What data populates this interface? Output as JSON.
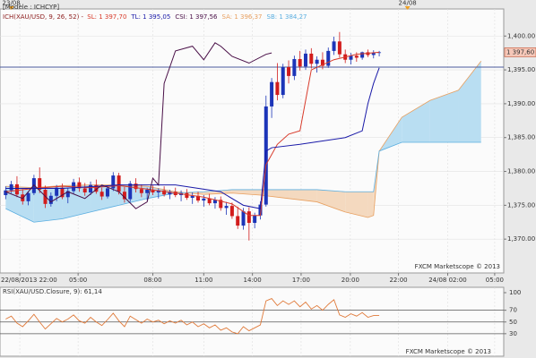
{
  "chart_data": {
    "type": "candlestick",
    "model_label": "[Modèle : ICHCYP]",
    "legend": {
      "indicator": "ICH(XAU/USD, 9, 26, 52) - ",
      "sl": "SL: 1 397,70",
      "tl": "TL: 1 395,05",
      "csi": "CSI: 1 397,56",
      "sa": "SA: 1 396,37",
      "sb": "SB: 1 384,27"
    },
    "watermark": "FXCM Marketscope © 2013",
    "up_color": "#1c35b8",
    "down_color": "#d21c1c",
    "xlim": [
      -1,
      88
    ],
    "xticks": [
      {
        "value": 2.5,
        "label": "22/08/2013 22:00"
      },
      {
        "value": 12.8,
        "label": "05:00"
      },
      {
        "value": 26,
        "label": "08:00"
      },
      {
        "value": 35,
        "label": "11:00"
      },
      {
        "value": 43.6,
        "label": "14:00"
      },
      {
        "value": 52.2,
        "label": "17:00"
      },
      {
        "value": 60.9,
        "label": "20:00"
      },
      {
        "value": 69.4,
        "label": "22:00"
      },
      {
        "value": 78.1,
        "label": "24/08 02:00"
      },
      {
        "value": 86.4,
        "label": "05:00"
      }
    ],
    "day_ticks": [
      {
        "value": 1,
        "label": "23/08"
      },
      {
        "value": 71,
        "label": "24/08"
      }
    ],
    "ylim": [
      1365,
      1404
    ],
    "yticks": [
      {
        "value": 1370,
        "label": "1,370.00"
      },
      {
        "value": 1375,
        "label": "1,375.00"
      },
      {
        "value": 1380,
        "label": "1,380.00"
      },
      {
        "value": 1385,
        "label": "1,385.00"
      },
      {
        "value": 1390,
        "label": "1,390.00"
      },
      {
        "value": 1395,
        "label": "1,395.00"
      },
      {
        "value": 1400,
        "label": "1,400.00"
      }
    ],
    "grid": true,
    "hline": {
      "value": 1395.4,
      "color": "#4a5a9c"
    },
    "last_price": {
      "value": 1397.6,
      "label": "1 397,60"
    },
    "candles": [
      [
        1376.5,
        1377.8,
        1375.9,
        1377.2
      ],
      [
        1377.2,
        1378.6,
        1376.8,
        1378.1
      ],
      [
        1378.1,
        1379.3,
        1376.2,
        1376.6
      ],
      [
        1376.6,
        1377.4,
        1375.1,
        1375.6
      ],
      [
        1375.6,
        1377.0,
        1375.0,
        1376.8
      ],
      [
        1376.8,
        1379.5,
        1376.5,
        1379.0
      ],
      [
        1379.0,
        1380.6,
        1376.8,
        1377.3
      ],
      [
        1377.3,
        1377.9,
        1374.6,
        1375.2
      ],
      [
        1375.2,
        1376.9,
        1374.8,
        1376.4
      ],
      [
        1376.4,
        1378.0,
        1375.6,
        1377.6
      ],
      [
        1377.6,
        1378.2,
        1375.9,
        1376.2
      ],
      [
        1376.2,
        1377.5,
        1375.3,
        1377.1
      ],
      [
        1377.1,
        1378.9,
        1376.7,
        1378.4
      ],
      [
        1378.4,
        1379.1,
        1377.0,
        1377.5
      ],
      [
        1377.5,
        1378.3,
        1376.4,
        1376.9
      ],
      [
        1376.9,
        1378.5,
        1376.5,
        1378.0
      ],
      [
        1378.0,
        1378.8,
        1376.7,
        1377.0
      ],
      [
        1377.0,
        1377.6,
        1375.8,
        1376.3
      ],
      [
        1376.3,
        1377.9,
        1376.0,
        1377.5
      ],
      [
        1377.5,
        1379.9,
        1377.1,
        1379.4
      ],
      [
        1379.4,
        1379.8,
        1376.6,
        1377.0
      ],
      [
        1377.0,
        1377.7,
        1375.4,
        1375.9
      ],
      [
        1375.9,
        1378.6,
        1375.5,
        1378.2
      ],
      [
        1378.2,
        1379.0,
        1376.9,
        1377.4
      ],
      [
        1377.4,
        1378.1,
        1376.2,
        1376.8
      ],
      [
        1376.8,
        1377.6,
        1375.7,
        1377.3
      ],
      [
        1377.3,
        1378.0,
        1376.5,
        1376.9
      ],
      [
        1376.9,
        1377.5,
        1376.0,
        1377.2
      ],
      [
        1377.2,
        1377.8,
        1376.3,
        1376.6
      ],
      [
        1376.6,
        1377.3,
        1375.9,
        1377.0
      ],
      [
        1377.0,
        1377.6,
        1376.2,
        1376.5
      ],
      [
        1376.5,
        1377.2,
        1375.6,
        1376.8
      ],
      [
        1376.8,
        1377.4,
        1375.8,
        1376.1
      ],
      [
        1376.1,
        1376.9,
        1375.2,
        1376.4
      ],
      [
        1376.4,
        1377.0,
        1375.4,
        1375.7
      ],
      [
        1375.7,
        1376.5,
        1374.8,
        1376.0
      ],
      [
        1376.0,
        1376.7,
        1375.0,
        1375.3
      ],
      [
        1375.3,
        1376.2,
        1374.5,
        1375.8
      ],
      [
        1375.8,
        1376.3,
        1374.2,
        1374.6
      ],
      [
        1374.6,
        1375.5,
        1373.6,
        1374.9
      ],
      [
        1374.9,
        1375.4,
        1373.0,
        1373.4
      ],
      [
        1373.4,
        1374.8,
        1371.5,
        1372.0
      ],
      [
        1372.0,
        1374.6,
        1371.4,
        1374.1
      ],
      [
        1374.1,
        1374.7,
        1369.8,
        1372.4
      ],
      [
        1372.4,
        1373.9,
        1371.6,
        1373.5
      ],
      [
        1373.5,
        1375.6,
        1372.9,
        1375.1
      ],
      [
        1375.1,
        1391.2,
        1374.8,
        1389.6
      ],
      [
        1389.6,
        1393.8,
        1387.9,
        1393.2
      ],
      [
        1393.2,
        1396.0,
        1390.5,
        1391.3
      ],
      [
        1391.3,
        1395.9,
        1390.8,
        1395.4
      ],
      [
        1395.4,
        1396.4,
        1393.0,
        1394.1
      ],
      [
        1394.1,
        1397.1,
        1393.5,
        1396.6
      ],
      [
        1396.6,
        1397.8,
        1394.9,
        1395.5
      ],
      [
        1395.5,
        1398.0,
        1395.0,
        1397.4
      ],
      [
        1397.4,
        1398.2,
        1395.2,
        1395.9
      ],
      [
        1395.9,
        1397.0,
        1394.6,
        1396.5
      ],
      [
        1396.5,
        1397.6,
        1395.1,
        1395.6
      ],
      [
        1395.6,
        1398.3,
        1395.3,
        1397.8
      ],
      [
        1397.8,
        1399.9,
        1397.2,
        1399.2
      ],
      [
        1399.2,
        1400.6,
        1396.8,
        1397.3
      ],
      [
        1397.3,
        1398.0,
        1396.0,
        1396.5
      ],
      [
        1396.5,
        1397.5,
        1395.8,
        1397.1
      ],
      [
        1397.1,
        1397.6,
        1396.2,
        1396.8
      ],
      [
        1396.8,
        1397.7,
        1396.5,
        1397.6
      ],
      [
        1397.6,
        1398.0,
        1396.9,
        1397.2
      ],
      [
        1397.2,
        1397.9,
        1396.7,
        1397.5
      ],
      [
        1397.5,
        1397.8,
        1397.0,
        1397.6
      ]
    ],
    "lines": [
      {
        "color": "#d83a2a",
        "x": [
          0,
          5,
          10,
          15,
          20,
          25,
          30,
          35,
          40,
          43,
          45,
          46,
          48,
          50,
          52,
          54,
          58,
          62,
          66
        ],
        "values": [
          1377,
          1377.5,
          1377.8,
          1377.6,
          1377.9,
          1377.4,
          1376.8,
          1376.2,
          1375.2,
          1373.5,
          1373.5,
          1381,
          1384,
          1385.5,
          1386,
          1395,
          1396.5,
          1397.3,
          1397.6
        ]
      },
      {
        "color": "#1a1aa8",
        "x": [
          0,
          10,
          20,
          30,
          38,
          42,
          45,
          46,
          47,
          52,
          56,
          60,
          63,
          64,
          65,
          66
        ],
        "values": [
          1377.5,
          1377.5,
          1378,
          1378,
          1377,
          1375,
          1374.5,
          1383,
          1383.5,
          1384,
          1384.5,
          1385,
          1386,
          1390,
          1393,
          1395.3
        ]
      },
      {
        "color": "#4a1048",
        "x": [
          0,
          3,
          5,
          8,
          11,
          14,
          17,
          20,
          23,
          25,
          26,
          27,
          28,
          30,
          33,
          35,
          37,
          38,
          40,
          43,
          46,
          47
        ],
        "values": [
          1377,
          1376,
          1378,
          1375.5,
          1377,
          1376,
          1378,
          1377,
          1374.5,
          1375.5,
          1379,
          1378,
          1393,
          1397.8,
          1398.5,
          1396.5,
          1399,
          1398.5,
          1397,
          1396,
          1397.3,
          1397.5
        ]
      }
    ],
    "cloud": {
      "x": [
        0,
        5,
        10,
        15,
        20,
        25,
        30,
        35,
        40,
        45,
        50,
        55,
        60,
        64,
        65,
        66,
        70,
        75,
        80,
        84
      ],
      "senkou_a": [
        1377.8,
        1377.6,
        1377.9,
        1378,
        1378,
        1377.8,
        1377,
        1376.6,
        1376.8,
        1376.5,
        1376,
        1375.5,
        1374,
        1373.2,
        1373.5,
        1383,
        1388,
        1390.5,
        1392,
        1396.3
      ],
      "senkou_b": [
        1374.5,
        1372.5,
        1373,
        1374,
        1375,
        1376,
        1376.8,
        1377,
        1377.3,
        1377.3,
        1377.3,
        1377.3,
        1377,
        1377,
        1377,
        1383,
        1384.3,
        1384.3,
        1384.3,
        1384.3
      ],
      "a_color": "#e8a060",
      "b_color": "#5aaee0",
      "bull_fill": "#b9def2",
      "bear_fill": "#f4d9bf"
    },
    "rsi": {
      "title": "RSI(XAU/USD.Closure, 9): 61,14",
      "color": "#e07a3a",
      "ylim": [
        0,
        100
      ],
      "yticks": [
        30,
        50,
        70,
        100
      ],
      "levels_color": "#555",
      "values": [
        55,
        60,
        48,
        42,
        52,
        63,
        50,
        38,
        47,
        56,
        50,
        55,
        62,
        52,
        48,
        58,
        50,
        44,
        54,
        65,
        52,
        42,
        60,
        54,
        48,
        55,
        50,
        53,
        47,
        52,
        48,
        53,
        45,
        50,
        42,
        47,
        40,
        45,
        36,
        40,
        33,
        30,
        42,
        35,
        40,
        45,
        86,
        90,
        78,
        86,
        80,
        86,
        76,
        84,
        72,
        78,
        70,
        80,
        88,
        62,
        58,
        64,
        60,
        66,
        58,
        61,
        61.14
      ]
    }
  }
}
